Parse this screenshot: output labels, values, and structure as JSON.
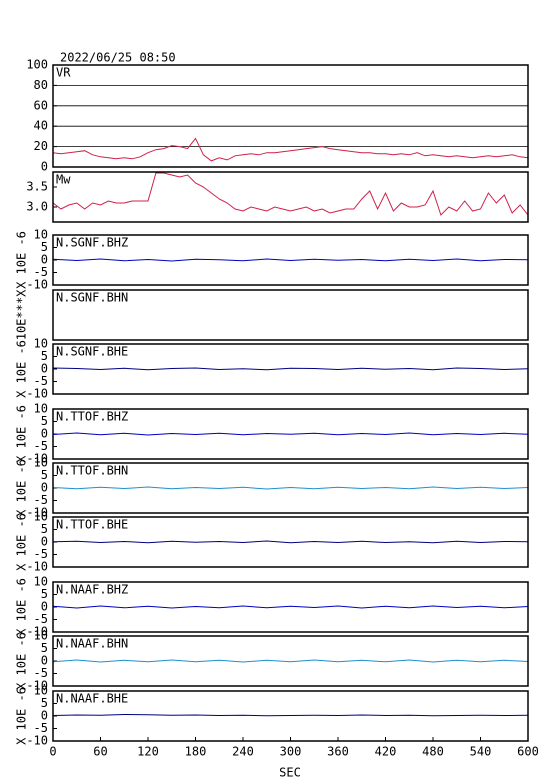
{
  "header": "2022/06/25 08:50",
  "x_axis": {
    "label": "SEC",
    "lim": [
      0,
      600
    ],
    "ticks": [
      0,
      60,
      120,
      180,
      240,
      300,
      360,
      420,
      480,
      540,
      600
    ]
  },
  "chart_data": [
    {
      "type": "line",
      "label": "VR",
      "color": "#d0204a",
      "grid": true,
      "ylim": [
        0,
        100
      ],
      "yticks": [
        0,
        20,
        40,
        60,
        80,
        100
      ],
      "x": [
        0,
        10,
        20,
        30,
        40,
        50,
        60,
        70,
        80,
        90,
        100,
        110,
        120,
        130,
        140,
        150,
        160,
        170,
        180,
        190,
        200,
        210,
        220,
        230,
        240,
        250,
        260,
        270,
        280,
        290,
        300,
        310,
        320,
        330,
        340,
        350,
        360,
        370,
        380,
        390,
        400,
        410,
        420,
        430,
        440,
        450,
        460,
        470,
        480,
        490,
        500,
        510,
        520,
        530,
        540,
        550,
        560,
        570,
        580,
        590,
        600
      ],
      "values": [
        14,
        13,
        14,
        15,
        16,
        12,
        10,
        9,
        8,
        9,
        8,
        10,
        14,
        17,
        18,
        21,
        20,
        18,
        28,
        12,
        6,
        9,
        7,
        11,
        12,
        13,
        12,
        14,
        14,
        15,
        16,
        17,
        18,
        19,
        20,
        18,
        17,
        16,
        15,
        14,
        14,
        13,
        13,
        12,
        13,
        12,
        14,
        11,
        12,
        11,
        10,
        11,
        10,
        9,
        10,
        11,
        10,
        11,
        12,
        10,
        9
      ]
    },
    {
      "type": "line",
      "label": "Mw",
      "color": "#d0204a",
      "grid": false,
      "ylim": [
        2.625,
        3.875
      ],
      "yticks": [
        {
          "value": 3,
          "label": "3.0"
        },
        3.5
      ],
      "x": [
        0,
        10,
        20,
        30,
        40,
        50,
        60,
        70,
        80,
        90,
        100,
        110,
        120,
        130,
        140,
        150,
        160,
        170,
        180,
        190,
        200,
        210,
        220,
        230,
        240,
        250,
        260,
        270,
        280,
        290,
        300,
        310,
        320,
        330,
        340,
        350,
        360,
        370,
        380,
        390,
        400,
        410,
        420,
        430,
        440,
        450,
        460,
        470,
        480,
        490,
        500,
        510,
        520,
        530,
        540,
        550,
        560,
        570,
        580,
        590,
        600
      ],
      "values": [
        3.1,
        2.95,
        3.05,
        3.1,
        2.95,
        3.1,
        3.05,
        3.15,
        3.1,
        3.1,
        3.15,
        3.15,
        3.15,
        3.85,
        3.85,
        3.8,
        3.75,
        3.8,
        3.6,
        3.5,
        3.35,
        3.2,
        3.1,
        2.95,
        2.9,
        3.0,
        2.95,
        2.9,
        3.0,
        2.95,
        2.9,
        2.95,
        3.0,
        2.9,
        2.95,
        2.85,
        2.9,
        2.95,
        2.95,
        3.2,
        3.4,
        2.95,
        3.35,
        2.9,
        3.1,
        3.0,
        3.0,
        3.05,
        3.4,
        2.8,
        3.0,
        2.9,
        3.15,
        2.9,
        2.95,
        3.35,
        3.1,
        3.3,
        2.85,
        3.05,
        2.8
      ]
    },
    {
      "type": "line",
      "label": "N.SGNF.BHZ",
      "ylabel": "X 10E -6",
      "color": "#0000c0",
      "grid": false,
      "ylim": [
        -10,
        10
      ],
      "yticks": [
        -10,
        -5,
        0,
        5,
        10
      ],
      "x": [
        0,
        30,
        60,
        90,
        120,
        150,
        180,
        210,
        240,
        270,
        300,
        330,
        360,
        390,
        420,
        450,
        480,
        510,
        540,
        570,
        600
      ],
      "values": [
        0.3,
        -0.2,
        0.4,
        -0.3,
        0.2,
        -0.4,
        0.3,
        0.1,
        -0.3,
        0.4,
        -0.2,
        0.3,
        -0.1,
        0.2,
        -0.3,
        0.3,
        -0.2,
        0.4,
        -0.3,
        0.2,
        0.1
      ]
    },
    {
      "type": "line",
      "label": "N.SGNF.BHN",
      "ylabel": "10E***X",
      "color": "#1e90d0",
      "grid": false,
      "ylim": [
        -10,
        10
      ],
      "yticks": [],
      "x": [],
      "values": []
    },
    {
      "type": "line",
      "label": "N.SGNF.BHE",
      "ylabel": "X 10E -6",
      "color": "#000080",
      "grid": false,
      "ylim": [
        -10,
        10
      ],
      "yticks": [
        -10,
        -5,
        0,
        5,
        10
      ],
      "x": [
        0,
        30,
        60,
        90,
        120,
        150,
        180,
        210,
        240,
        270,
        300,
        330,
        360,
        390,
        420,
        450,
        480,
        510,
        540,
        570,
        600
      ],
      "values": [
        0.4,
        0.2,
        -0.2,
        0.3,
        -0.3,
        0.2,
        0.4,
        -0.2,
        0.1,
        -0.3,
        0.3,
        0.2,
        -0.2,
        0.3,
        -0.1,
        0.2,
        -0.3,
        0.4,
        0.2,
        -0.2,
        0.1
      ]
    },
    {
      "type": "line",
      "label": "N.TTOF.BHZ",
      "ylabel": "X 10E -6",
      "color": "#0000c0",
      "grid": false,
      "ylim": [
        -10,
        10
      ],
      "yticks": [
        -10,
        -5,
        0,
        5,
        10
      ],
      "x": [
        0,
        30,
        60,
        90,
        120,
        150,
        180,
        210,
        240,
        270,
        300,
        330,
        360,
        390,
        420,
        450,
        480,
        510,
        540,
        570,
        600
      ],
      "values": [
        -0.2,
        0.4,
        -0.3,
        0.3,
        -0.4,
        0.2,
        -0.2,
        0.3,
        -0.3,
        0.2,
        -0.1,
        0.3,
        -0.3,
        0.2,
        -0.2,
        0.4,
        -0.3,
        0.2,
        -0.2,
        0.3,
        -0.1
      ]
    },
    {
      "type": "line",
      "label": "N.TTOF.BHN",
      "ylabel": "X 10E -6",
      "color": "#1e90d0",
      "grid": false,
      "ylim": [
        -10,
        10
      ],
      "yticks": [
        -10,
        -5,
        0,
        5,
        10
      ],
      "x": [
        0,
        30,
        60,
        90,
        120,
        150,
        180,
        210,
        240,
        270,
        300,
        330,
        360,
        390,
        420,
        450,
        480,
        510,
        540,
        570,
        600
      ],
      "values": [
        0.2,
        -0.3,
        0.3,
        -0.2,
        0.4,
        -0.3,
        0.2,
        -0.2,
        0.3,
        -0.4,
        0.2,
        -0.3,
        0.3,
        -0.2,
        0.2,
        -0.3,
        0.4,
        -0.2,
        0.3,
        -0.2,
        0.2
      ]
    },
    {
      "type": "line",
      "label": "N.TTOF.BHE",
      "ylabel": "X 10E -6",
      "color": "#000080",
      "grid": false,
      "ylim": [
        -10,
        10
      ],
      "yticks": [
        -10,
        -5,
        0,
        5,
        10
      ],
      "x": [
        0,
        30,
        60,
        90,
        120,
        150,
        180,
        210,
        240,
        270,
        300,
        330,
        360,
        390,
        420,
        450,
        480,
        510,
        540,
        570,
        600
      ],
      "values": [
        0.1,
        0.3,
        -0.2,
        0.2,
        -0.3,
        0.3,
        -0.1,
        0.2,
        -0.2,
        0.4,
        -0.3,
        0.2,
        -0.2,
        0.3,
        -0.2,
        0.1,
        -0.3,
        0.3,
        -0.2,
        0.2,
        0.1
      ]
    },
    {
      "type": "line",
      "label": "N.NAAF.BHZ",
      "ylabel": "X 10E -6",
      "color": "#0000c0",
      "grid": false,
      "ylim": [
        -10,
        10
      ],
      "yticks": [
        -10,
        -5,
        0,
        5,
        10
      ],
      "x": [
        0,
        30,
        60,
        90,
        120,
        150,
        180,
        210,
        240,
        270,
        300,
        330,
        360,
        390,
        420,
        450,
        480,
        510,
        540,
        570,
        600
      ],
      "values": [
        0.3,
        -0.4,
        0.4,
        -0.3,
        0.3,
        -0.4,
        0.2,
        -0.3,
        0.4,
        -0.3,
        0.3,
        -0.2,
        0.4,
        -0.4,
        0.3,
        -0.3,
        0.4,
        -0.2,
        0.3,
        -0.3,
        0.2
      ]
    },
    {
      "type": "line",
      "label": "N.NAAF.BHN",
      "ylabel": "X 10E -6",
      "color": "#1e90d0",
      "grid": false,
      "ylim": [
        -10,
        10
      ],
      "yticks": [
        -10,
        -5,
        0,
        5,
        10
      ],
      "x": [
        0,
        30,
        60,
        90,
        120,
        150,
        180,
        210,
        240,
        270,
        300,
        330,
        360,
        390,
        420,
        450,
        480,
        510,
        540,
        570,
        600
      ],
      "values": [
        -0.3,
        0.4,
        -0.4,
        0.3,
        -0.3,
        0.4,
        -0.3,
        0.3,
        -0.4,
        0.3,
        -0.3,
        0.4,
        -0.3,
        0.3,
        -0.3,
        0.4,
        -0.4,
        0.3,
        -0.3,
        0.3,
        -0.2
      ]
    },
    {
      "type": "line",
      "label": "N.NAAF.BHE",
      "ylabel": "X 10E -6",
      "color": "#000080",
      "grid": false,
      "ylim": [
        -10,
        10
      ],
      "yticks": [
        -10,
        -5,
        0,
        5,
        10
      ],
      "x": [
        0,
        30,
        60,
        90,
        120,
        150,
        180,
        210,
        240,
        270,
        300,
        330,
        360,
        390,
        420,
        450,
        480,
        510,
        540,
        570,
        600
      ],
      "values": [
        0.2,
        0.4,
        0.3,
        0.6,
        0.5,
        0.3,
        0.4,
        0.2,
        0.3,
        0.1,
        0.2,
        0.3,
        0.2,
        0.4,
        0.2,
        0.3,
        0.1,
        0.2,
        0.3,
        0.2,
        0.3
      ]
    }
  ]
}
